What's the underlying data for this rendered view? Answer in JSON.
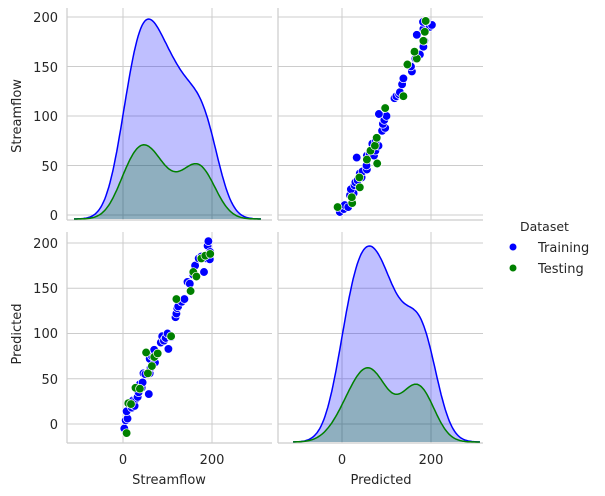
{
  "chart_data": {
    "type": "scatter",
    "title": "",
    "variables": [
      "Streamflow",
      "Predicted"
    ],
    "hue": "Dataset",
    "legend": {
      "title": "Dataset",
      "position": "right",
      "entries": [
        {
          "label": "Training",
          "color": "#0000ff"
        },
        {
          "label": "Testing",
          "color": "#008000"
        }
      ]
    },
    "grid": true,
    "panels": {
      "streamflow_kde": {
        "type": "kde",
        "xlabel": "",
        "ylabel": "Streamflow",
        "y_ticks": [
          0,
          50,
          100,
          150,
          200
        ],
        "training_peak_x": 50,
        "testing_peaks_x": [
          55,
          175
        ]
      },
      "streamflow_vs_predicted": {
        "type": "scatter",
        "note": "x = Predicted, y = Streamflow"
      },
      "predicted_vs_streamflow": {
        "type": "scatter",
        "xlabel": "Streamflow",
        "ylabel": "Predicted",
        "x_ticks": [
          0,
          200
        ],
        "y_ticks": [
          0,
          50,
          100,
          150,
          200
        ]
      },
      "predicted_kde": {
        "type": "kde",
        "xlabel": "Predicted",
        "x_ticks": [
          0,
          200
        ],
        "training_peak_x": 55,
        "testing_peaks_x": [
          60,
          175
        ]
      }
    },
    "xlim": [
      -130,
      330
    ],
    "ylim_top": [
      -8,
      208
    ],
    "ylim_bottom": [
      -22,
      212
    ],
    "series": [
      {
        "name": "Training",
        "color": "#0000ff",
        "points": [
          [
            3,
            -5
          ],
          [
            6,
            4
          ],
          [
            10,
            6
          ],
          [
            8,
            14
          ],
          [
            20,
            18
          ],
          [
            22,
            26
          ],
          [
            26,
            20
          ],
          [
            30,
            28
          ],
          [
            33,
            30
          ],
          [
            35,
            35
          ],
          [
            38,
            44
          ],
          [
            42,
            40
          ],
          [
            44,
            46
          ],
          [
            46,
            56
          ],
          [
            50,
            55
          ],
          [
            58,
            33
          ],
          [
            60,
            56
          ],
          [
            62,
            62
          ],
          [
            60,
            72
          ],
          [
            65,
            75
          ],
          [
            70,
            82
          ],
          [
            72,
            68
          ],
          [
            75,
            76
          ],
          [
            85,
            90
          ],
          [
            88,
            97
          ],
          [
            92,
            92
          ],
          [
            96,
            95
          ],
          [
            100,
            100
          ],
          [
            102,
            83
          ],
          [
            108,
            96
          ],
          [
            118,
            118
          ],
          [
            120,
            122
          ],
          [
            122,
            128
          ],
          [
            124,
            130
          ],
          [
            132,
            135
          ],
          [
            138,
            138
          ],
          [
            145,
            157
          ],
          [
            150,
            155
          ],
          [
            158,
            165
          ],
          [
            162,
            175
          ],
          [
            170,
            183
          ],
          [
            176,
            185
          ],
          [
            182,
            168
          ],
          [
            188,
            183
          ],
          [
            190,
            197
          ],
          [
            192,
            202
          ],
          [
            195,
            182
          ],
          [
            196,
            190
          ]
        ]
      },
      {
        "name": "Testing",
        "color": "#008000",
        "points": [
          [
            8,
            -10
          ],
          [
            12,
            23
          ],
          [
            18,
            22
          ],
          [
            28,
            40
          ],
          [
            38,
            39
          ],
          [
            52,
            79
          ],
          [
            56,
            56
          ],
          [
            65,
            64
          ],
          [
            70,
            74
          ],
          [
            78,
            78
          ],
          [
            108,
            97
          ],
          [
            120,
            138
          ],
          [
            152,
            147
          ],
          [
            158,
            168
          ],
          [
            165,
            163
          ],
          [
            176,
            183
          ],
          [
            185,
            186
          ],
          [
            196,
            188
          ]
        ]
      }
    ]
  }
}
